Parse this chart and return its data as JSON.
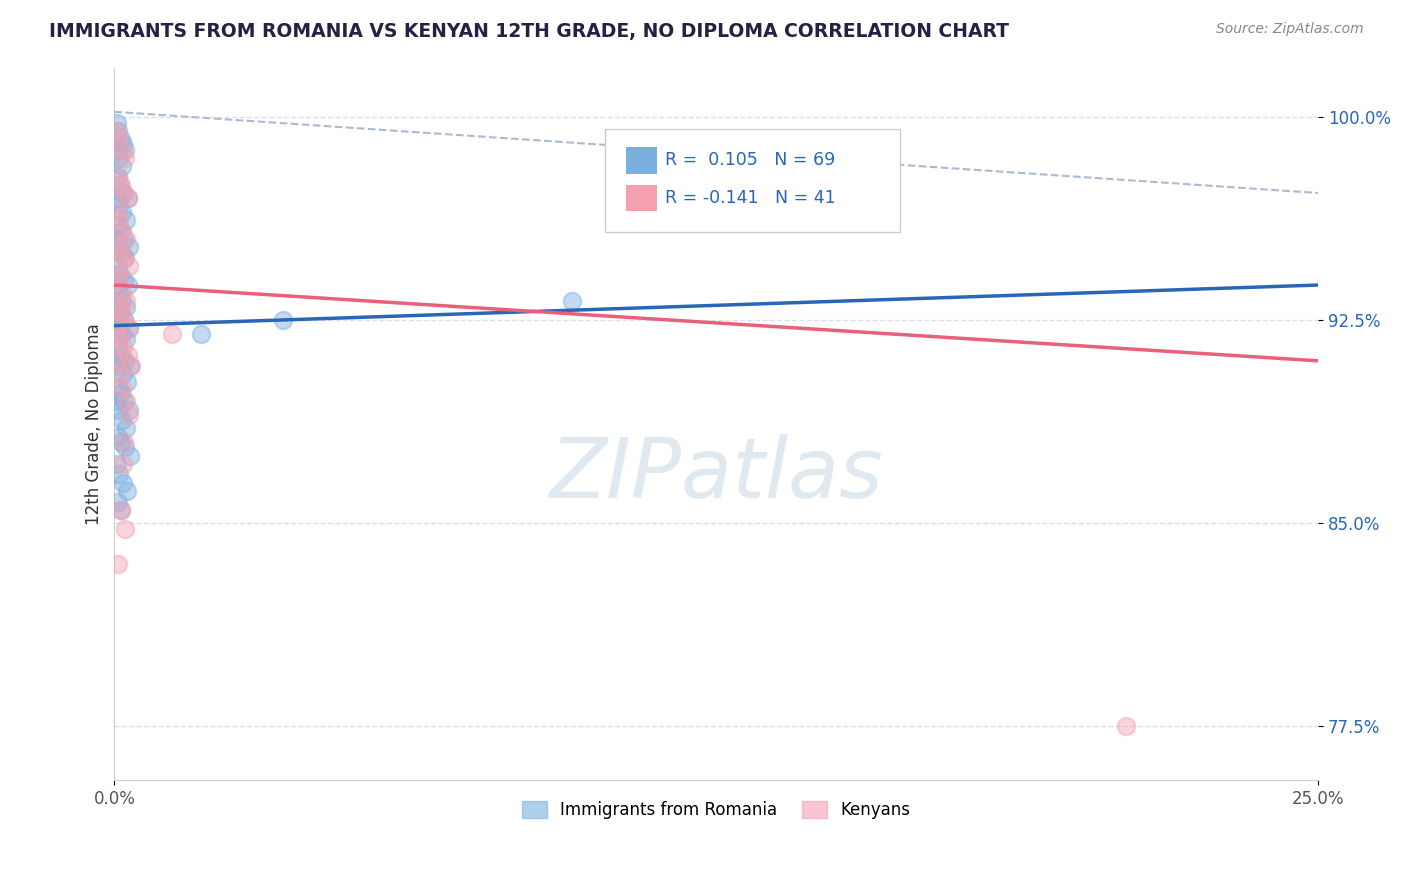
{
  "title": "IMMIGRANTS FROM ROMANIA VS KENYAN 12TH GRADE, NO DIPLOMA CORRELATION CHART",
  "source": "Source: ZipAtlas.com",
  "ylabel": "12th Grade, No Diploma",
  "xlim": [
    0.0,
    25.0
  ],
  "ylim": [
    75.5,
    101.8
  ],
  "ytick_positions": [
    77.5,
    85.0,
    92.5,
    100.0
  ],
  "ytick_labels": [
    "77.5%",
    "85.0%",
    "92.5%",
    "100.0%"
  ],
  "r1": 0.105,
  "n1": 69,
  "r2": -0.141,
  "n2": 41,
  "blue_color": "#7AAFDE",
  "pink_color": "#F4A0B0",
  "blue_line_color": "#2966B8",
  "pink_line_color": "#E8607A",
  "dashed_line_color": "#AABBD0",
  "background_color": "#FFFFFF",
  "grid_color": "#DDDDEE",
  "blue_line_y0": 92.3,
  "blue_line_y1": 93.8,
  "pink_line_y0": 93.8,
  "pink_line_y1": 91.0,
  "dash_line_y0": 100.2,
  "dash_line_y1": 97.2,
  "romania_scatter": [
    [
      0.05,
      99.8
    ],
    [
      0.08,
      99.5
    ],
    [
      0.14,
      99.2
    ],
    [
      0.18,
      99.0
    ],
    [
      0.05,
      98.8
    ],
    [
      0.1,
      98.5
    ],
    [
      0.15,
      98.2
    ],
    [
      0.22,
      98.8
    ],
    [
      0.08,
      97.8
    ],
    [
      0.12,
      97.5
    ],
    [
      0.18,
      97.2
    ],
    [
      0.28,
      97.0
    ],
    [
      0.06,
      97.0
    ],
    [
      0.1,
      96.8
    ],
    [
      0.16,
      96.5
    ],
    [
      0.24,
      96.2
    ],
    [
      0.08,
      96.0
    ],
    [
      0.14,
      95.8
    ],
    [
      0.2,
      95.5
    ],
    [
      0.3,
      95.2
    ],
    [
      0.06,
      95.5
    ],
    [
      0.1,
      95.2
    ],
    [
      0.16,
      95.0
    ],
    [
      0.22,
      94.8
    ],
    [
      0.08,
      94.5
    ],
    [
      0.12,
      94.2
    ],
    [
      0.2,
      94.0
    ],
    [
      0.28,
      93.8
    ],
    [
      0.06,
      93.8
    ],
    [
      0.1,
      93.5
    ],
    [
      0.16,
      93.2
    ],
    [
      0.24,
      93.0
    ],
    [
      0.08,
      93.0
    ],
    [
      0.12,
      92.8
    ],
    [
      0.2,
      92.5
    ],
    [
      0.3,
      92.2
    ],
    [
      0.06,
      92.5
    ],
    [
      0.1,
      92.2
    ],
    [
      0.16,
      92.0
    ],
    [
      0.24,
      91.8
    ],
    [
      0.08,
      91.5
    ],
    [
      0.14,
      91.2
    ],
    [
      0.22,
      91.0
    ],
    [
      0.32,
      90.8
    ],
    [
      0.06,
      91.0
    ],
    [
      0.1,
      90.8
    ],
    [
      0.18,
      90.5
    ],
    [
      0.26,
      90.2
    ],
    [
      0.08,
      90.0
    ],
    [
      0.14,
      89.8
    ],
    [
      0.2,
      89.5
    ],
    [
      0.3,
      89.2
    ],
    [
      0.06,
      89.5
    ],
    [
      0.1,
      89.2
    ],
    [
      0.16,
      88.8
    ],
    [
      0.24,
      88.5
    ],
    [
      0.08,
      88.2
    ],
    [
      0.14,
      88.0
    ],
    [
      0.22,
      87.8
    ],
    [
      0.32,
      87.5
    ],
    [
      1.8,
      92.0
    ],
    [
      0.06,
      87.2
    ],
    [
      3.5,
      92.5
    ],
    [
      0.1,
      86.8
    ],
    [
      0.18,
      86.5
    ],
    [
      0.26,
      86.2
    ],
    [
      9.5,
      93.2
    ],
    [
      0.08,
      85.8
    ],
    [
      0.14,
      85.5
    ]
  ],
  "kenya_scatter": [
    [
      0.06,
      99.5
    ],
    [
      0.1,
      99.2
    ],
    [
      0.16,
      98.8
    ],
    [
      0.22,
      98.5
    ],
    [
      0.08,
      97.8
    ],
    [
      0.14,
      97.5
    ],
    [
      0.2,
      97.2
    ],
    [
      0.28,
      97.0
    ],
    [
      0.06,
      96.5
    ],
    [
      0.1,
      96.2
    ],
    [
      0.16,
      95.8
    ],
    [
      0.24,
      95.5
    ],
    [
      0.08,
      95.2
    ],
    [
      0.14,
      95.0
    ],
    [
      0.2,
      94.8
    ],
    [
      0.3,
      94.5
    ],
    [
      0.06,
      94.2
    ],
    [
      0.1,
      94.0
    ],
    [
      0.16,
      93.5
    ],
    [
      0.24,
      93.2
    ],
    [
      0.08,
      93.0
    ],
    [
      0.14,
      92.8
    ],
    [
      0.2,
      92.5
    ],
    [
      0.3,
      92.2
    ],
    [
      0.06,
      92.0
    ],
    [
      0.1,
      91.8
    ],
    [
      0.18,
      91.5
    ],
    [
      0.28,
      91.2
    ],
    [
      0.06,
      91.0
    ],
    [
      0.12,
      90.5
    ],
    [
      0.16,
      90.0
    ],
    [
      0.24,
      89.5
    ],
    [
      0.3,
      89.0
    ],
    [
      0.2,
      88.0
    ],
    [
      0.18,
      87.2
    ],
    [
      0.14,
      85.5
    ],
    [
      0.22,
      84.8
    ],
    [
      1.2,
      92.0
    ],
    [
      0.08,
      83.5
    ],
    [
      21.0,
      77.5
    ],
    [
      0.35,
      90.8
    ]
  ]
}
